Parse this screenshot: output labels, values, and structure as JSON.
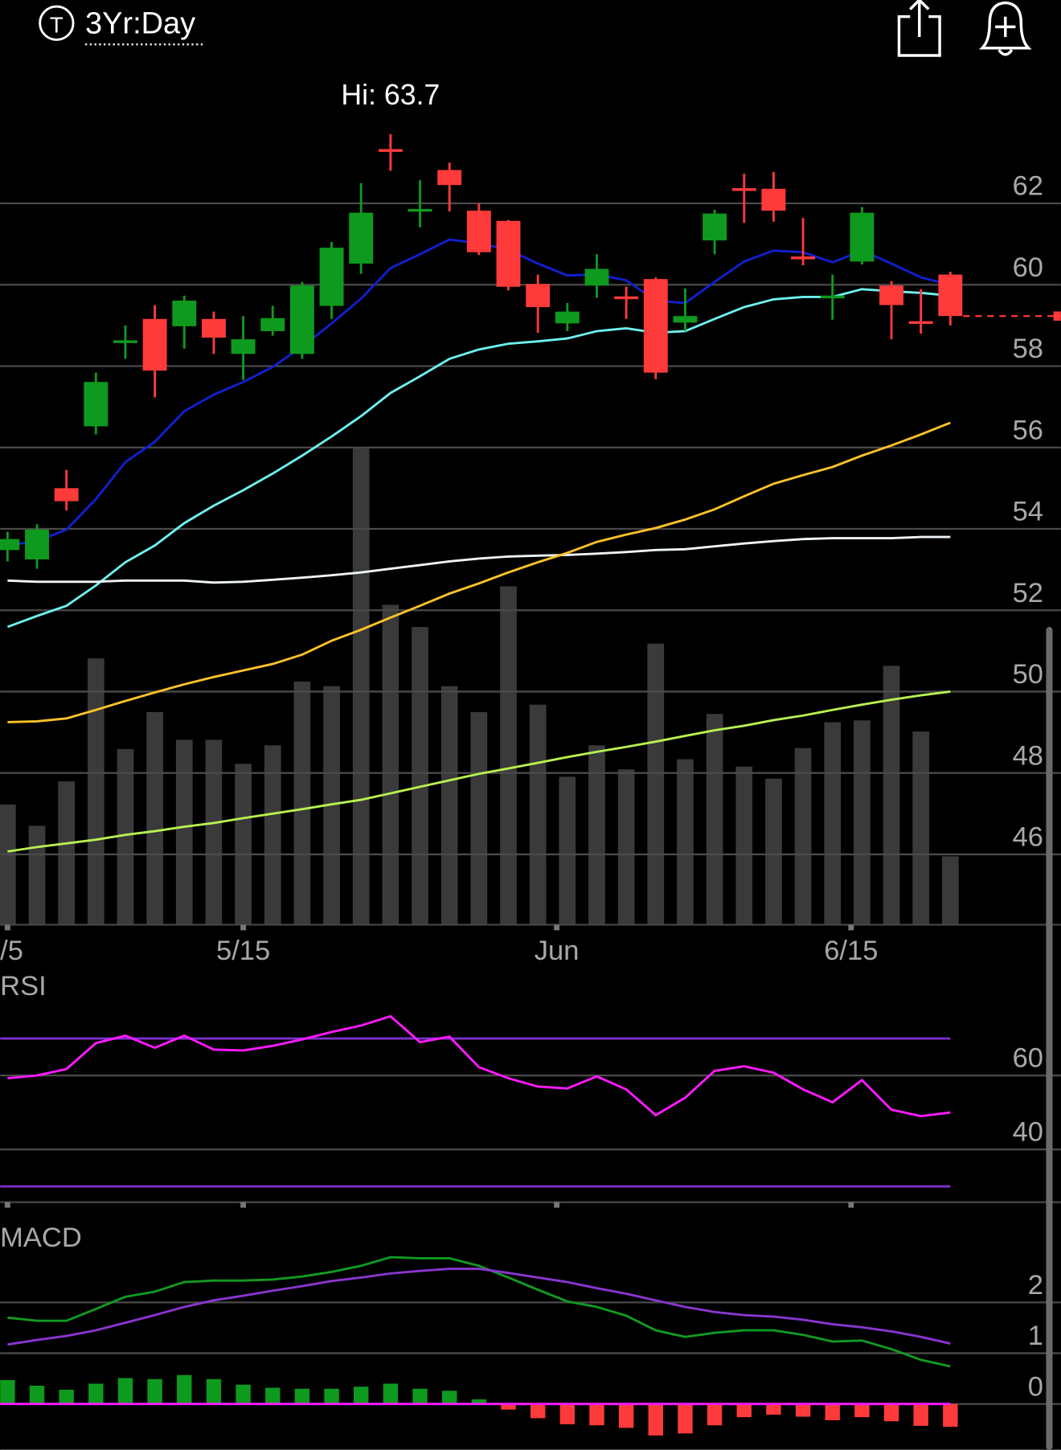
{
  "header": {
    "ticker_icon": "T",
    "period": "3Yr:Day"
  },
  "chart_data": [
    {
      "type": "candlestick",
      "annotation": "Hi: 63.7",
      "up_color": "#0e9a1e",
      "down_color": "#ff3a3a",
      "volume_color": "#3a3a3a",
      "grid": true,
      "xlim": [
        -0.25,
        35.75
      ],
      "ylim": [
        44.27,
        65.18
      ],
      "vlim": [
        0,
        920
      ],
      "yticks": [
        46,
        48,
        50,
        52,
        54,
        56,
        58,
        60,
        62
      ],
      "xticks": [
        {
          "value": 0,
          "label": "/5"
        },
        {
          "value": 8,
          "label": "5/15"
        },
        {
          "value": 18.64,
          "label": "Jun"
        },
        {
          "value": 28.63,
          "label": "6/15"
        }
      ],
      "open": [
        53.48,
        53.25,
        55.0,
        56.52,
        58.55,
        59.16,
        58.98,
        59.16,
        58.3,
        58.86,
        58.3,
        59.48,
        60.52,
        63.3,
        61.8,
        62.82,
        61.82,
        61.57,
        60.02,
        59.05,
        59.98,
        59.68,
        60.14,
        59.07,
        61.09,
        62.34,
        62.36,
        60.66,
        59.66,
        60.57,
        59.98,
        59.07,
        60.25
      ],
      "high": [
        53.93,
        54.11,
        55.45,
        57.84,
        59.0,
        59.5,
        59.73,
        59.34,
        59.23,
        59.48,
        60.07,
        61.05,
        62.5,
        63.7,
        62.57,
        63.0,
        62.0,
        61.59,
        60.25,
        59.55,
        60.75,
        59.95,
        60.18,
        59.91,
        61.84,
        62.73,
        62.77,
        61.64,
        60.25,
        61.91,
        60.09,
        59.89,
        60.32
      ],
      "low": [
        53.2,
        53.02,
        54.45,
        56.32,
        58.18,
        57.23,
        58.43,
        58.3,
        57.66,
        58.75,
        58.18,
        59.16,
        60.27,
        62.8,
        61.41,
        61.8,
        60.73,
        59.86,
        58.82,
        58.86,
        59.68,
        59.16,
        57.68,
        58.86,
        60.75,
        61.52,
        61.55,
        60.48,
        59.14,
        60.5,
        58.66,
        58.8,
        59.0
      ],
      "close": [
        53.75,
        53.98,
        54.68,
        57.61,
        58.6,
        57.89,
        59.61,
        58.7,
        58.66,
        59.18,
        59.98,
        60.91,
        61.77,
        63.25,
        61.83,
        62.45,
        60.8,
        59.95,
        59.45,
        59.34,
        60.39,
        59.63,
        57.84,
        59.23,
        61.75,
        62.3,
        61.82,
        60.61,
        59.7,
        61.77,
        59.5,
        59.02,
        59.23
      ],
      "volume": [
        130,
        107,
        155,
        288,
        190,
        230,
        200,
        200,
        174,
        194,
        263,
        258,
        515,
        346,
        322,
        258,
        230,
        366,
        238,
        160,
        194,
        168,
        304,
        179,
        228,
        171,
        158,
        191,
        219,
        221,
        280,
        209,
        74
      ],
      "series": [
        {
          "color": "#1020d0",
          "values": [
            53.59,
            53.7,
            53.98,
            54.73,
            55.64,
            56.14,
            56.89,
            57.3,
            57.61,
            57.98,
            58.48,
            59.05,
            59.66,
            60.41,
            60.75,
            61.11,
            61.02,
            60.86,
            60.52,
            60.23,
            60.25,
            60.11,
            59.61,
            59.55,
            60.07,
            60.57,
            60.84,
            60.8,
            60.55,
            60.84,
            60.52,
            60.18,
            60.0
          ]
        },
        {
          "color": "#6ff0f0",
          "values": [
            51.59,
            51.86,
            52.11,
            52.61,
            53.18,
            53.59,
            54.14,
            54.57,
            54.95,
            55.36,
            55.8,
            56.27,
            56.77,
            57.34,
            57.75,
            58.18,
            58.41,
            58.55,
            58.61,
            58.68,
            58.86,
            58.93,
            58.82,
            58.86,
            59.16,
            59.45,
            59.64,
            59.7,
            59.7,
            59.89,
            59.84,
            59.8,
            59.73
          ]
        },
        {
          "color": "#eef4f8",
          "values": [
            52.73,
            52.7,
            52.7,
            52.7,
            52.73,
            52.73,
            52.73,
            52.68,
            52.7,
            52.75,
            52.8,
            52.86,
            52.93,
            53.02,
            53.11,
            53.2,
            53.27,
            53.32,
            53.34,
            53.36,
            53.39,
            53.43,
            53.48,
            53.5,
            53.57,
            53.64,
            53.7,
            53.75,
            53.77,
            53.77,
            53.77,
            53.8,
            53.8
          ]
        },
        {
          "color": "#ffc22a",
          "values": [
            49.25,
            49.27,
            49.34,
            49.55,
            49.77,
            49.98,
            50.18,
            50.36,
            50.52,
            50.68,
            50.91,
            51.25,
            51.52,
            51.82,
            52.11,
            52.41,
            52.66,
            52.93,
            53.18,
            53.41,
            53.68,
            53.86,
            54.02,
            54.23,
            54.48,
            54.8,
            55.11,
            55.32,
            55.52,
            55.8,
            56.05,
            56.32,
            56.61
          ]
        },
        {
          "color": "#b8f050",
          "values": [
            46.07,
            46.18,
            46.27,
            46.36,
            46.48,
            46.57,
            46.68,
            46.77,
            46.89,
            47.0,
            47.11,
            47.23,
            47.34,
            47.5,
            47.66,
            47.82,
            47.98,
            48.11,
            48.25,
            48.39,
            48.52,
            48.64,
            48.77,
            48.91,
            49.05,
            49.16,
            49.3,
            49.41,
            49.55,
            49.68,
            49.8,
            49.91,
            50.0
          ]
        }
      ]
    },
    {
      "type": "line",
      "title": "RSI",
      "grid": true,
      "ylim": [
        25.75,
        80.75
      ],
      "yticks": [
        40,
        60
      ],
      "levels": [
        70,
        30
      ],
      "level_color": "#7d2fc8",
      "series": [
        {
          "color": "#ff1aff",
          "values": [
            59.25,
            60,
            61.75,
            68.75,
            70.75,
            67.5,
            70.75,
            67,
            66.75,
            68,
            69.75,
            71.75,
            73.5,
            76,
            69,
            70.5,
            62.25,
            59.25,
            57,
            56.5,
            59.75,
            56.25,
            49.25,
            54,
            61.25,
            62.5,
            60.75,
            56.25,
            52.75,
            58.75,
            50.75,
            49,
            50
          ]
        }
      ]
    },
    {
      "type": "macd",
      "title": "MACD",
      "grid": true,
      "ylim": [
        -0.906,
        3.245
      ],
      "yticks": [
        0,
        1,
        2
      ],
      "zero_color": "#ff1aff",
      "up_color": "#0e9a1e",
      "down_color": "#ff3a3a",
      "series": [
        {
          "color": "#119a22",
          "values": [
            1.7,
            1.64,
            1.64,
            1.87,
            2.11,
            2.21,
            2.4,
            2.43,
            2.43,
            2.45,
            2.51,
            2.6,
            2.72,
            2.89,
            2.87,
            2.87,
            2.72,
            2.49,
            2.25,
            2.02,
            1.91,
            1.74,
            1.45,
            1.32,
            1.4,
            1.45,
            1.45,
            1.36,
            1.23,
            1.25,
            1.08,
            0.87,
            0.74
          ]
        },
        {
          "color": "#8a35d0",
          "values": [
            1.17,
            1.26,
            1.34,
            1.45,
            1.6,
            1.75,
            1.91,
            2.04,
            2.13,
            2.23,
            2.32,
            2.42,
            2.49,
            2.57,
            2.62,
            2.66,
            2.66,
            2.58,
            2.49,
            2.4,
            2.28,
            2.17,
            2.04,
            1.91,
            1.81,
            1.75,
            1.72,
            1.66,
            1.57,
            1.51,
            1.43,
            1.32,
            1.19
          ]
        }
      ],
      "histogram": [
        0.47,
        0.36,
        0.28,
        0.4,
        0.51,
        0.49,
        0.57,
        0.49,
        0.38,
        0.32,
        0.3,
        0.3,
        0.34,
        0.4,
        0.3,
        0.26,
        0.09,
        -0.11,
        -0.28,
        -0.4,
        -0.42,
        -0.47,
        -0.62,
        -0.58,
        -0.42,
        -0.26,
        -0.21,
        -0.25,
        -0.32,
        -0.26,
        -0.34,
        -0.43,
        -0.45
      ]
    }
  ]
}
